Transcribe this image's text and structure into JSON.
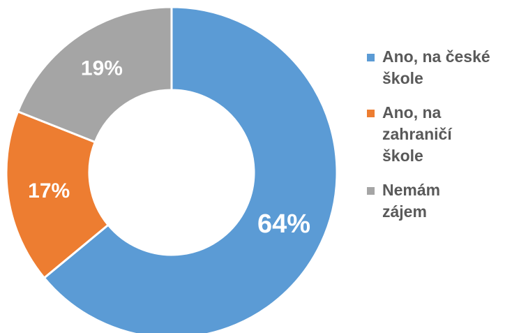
{
  "chart_data": {
    "type": "donut",
    "categories": [
      "Ano, na české škole",
      "Ano, na zahraničí škole",
      "Nemám zájem"
    ],
    "values": [
      64,
      17,
      19
    ],
    "value_labels": [
      "64%",
      "17%",
      "19%"
    ],
    "colors": [
      "#5b9bd5",
      "#ed7d31",
      "#a5a5a5"
    ],
    "legend": "right"
  }
}
